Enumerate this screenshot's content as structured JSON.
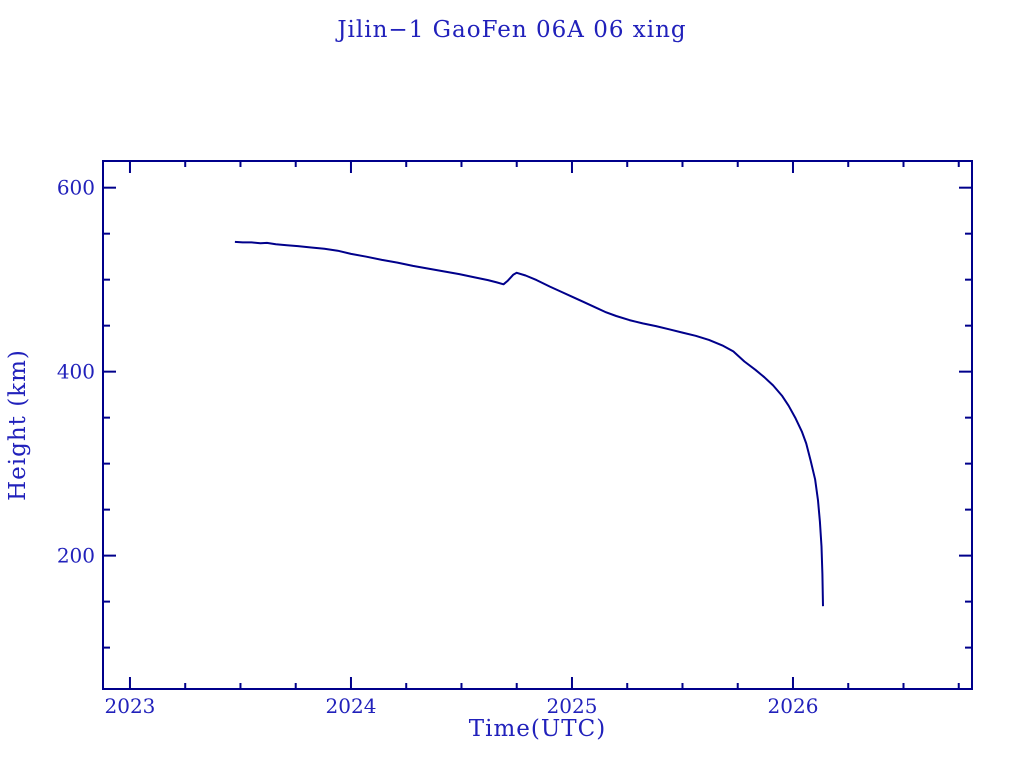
{
  "page": {
    "background": "#ffffff"
  },
  "colors": {
    "text": "#2121bb",
    "axis": "#00008b",
    "curve": "#00008b"
  },
  "chart_data": {
    "type": "line",
    "title": "Jilin−1 GaoFen 06A 06 xing",
    "xlabel": "Time(UTC)",
    "ylabel": "Height (km)",
    "xlim": [
      2022.878,
      2026.81
    ],
    "ylim": [
      55,
      629
    ],
    "grid": false,
    "legend": null,
    "xticks": [
      2023,
      2024,
      2025,
      2026
    ],
    "xtick_labels": [
      "2023",
      "2024",
      "2025",
      "2026"
    ],
    "x_minor_interval": 0.25,
    "yticks": [
      200,
      400,
      600
    ],
    "ytick_labels": [
      "200",
      "400",
      "600"
    ],
    "y_minor_interval": 50,
    "series": [
      {
        "name": "orbit-height-km",
        "color": "#00008b",
        "points": [
          [
            2023.475,
            541
          ],
          [
            2023.51,
            540.5
          ],
          [
            2023.55,
            540.5
          ],
          [
            2023.59,
            539.5
          ],
          [
            2023.62,
            540
          ],
          [
            2023.66,
            538.5
          ],
          [
            2023.71,
            537.5
          ],
          [
            2023.76,
            536.5
          ],
          [
            2023.82,
            535
          ],
          [
            2023.88,
            533.5
          ],
          [
            2023.94,
            531.5
          ],
          [
            2024.0,
            528
          ],
          [
            2024.07,
            525
          ],
          [
            2024.14,
            521.5
          ],
          [
            2024.21,
            518.5
          ],
          [
            2024.28,
            515
          ],
          [
            2024.35,
            512
          ],
          [
            2024.42,
            509
          ],
          [
            2024.49,
            506
          ],
          [
            2024.56,
            502.5
          ],
          [
            2024.62,
            499.5
          ],
          [
            2024.66,
            497
          ],
          [
            2024.69,
            495
          ],
          [
            2024.71,
            499
          ],
          [
            2024.735,
            505.5
          ],
          [
            2024.75,
            507.5
          ],
          [
            2024.79,
            504.5
          ],
          [
            2024.84,
            499.5
          ],
          [
            2024.9,
            492.5
          ],
          [
            2024.95,
            487
          ],
          [
            2025.0,
            481.5
          ],
          [
            2025.05,
            476
          ],
          [
            2025.1,
            470.5
          ],
          [
            2025.15,
            465
          ],
          [
            2025.2,
            460.5
          ],
          [
            2025.26,
            456
          ],
          [
            2025.32,
            452.5
          ],
          [
            2025.38,
            449.5
          ],
          [
            2025.44,
            446
          ],
          [
            2025.5,
            442.5
          ],
          [
            2025.56,
            439
          ],
          [
            2025.62,
            434.5
          ],
          [
            2025.68,
            428.5
          ],
          [
            2025.73,
            422
          ],
          [
            2025.78,
            411
          ],
          [
            2025.83,
            402
          ],
          [
            2025.87,
            394
          ],
          [
            2025.91,
            385
          ],
          [
            2025.95,
            374
          ],
          [
            2025.98,
            363
          ],
          [
            2026.01,
            350
          ],
          [
            2026.04,
            335
          ],
          [
            2026.06,
            322
          ],
          [
            2026.08,
            303
          ],
          [
            2026.1,
            283
          ],
          [
            2026.113,
            260
          ],
          [
            2026.122,
            237
          ],
          [
            2026.129,
            210
          ],
          [
            2026.133,
            180
          ],
          [
            2026.136,
            145
          ]
        ]
      }
    ]
  }
}
